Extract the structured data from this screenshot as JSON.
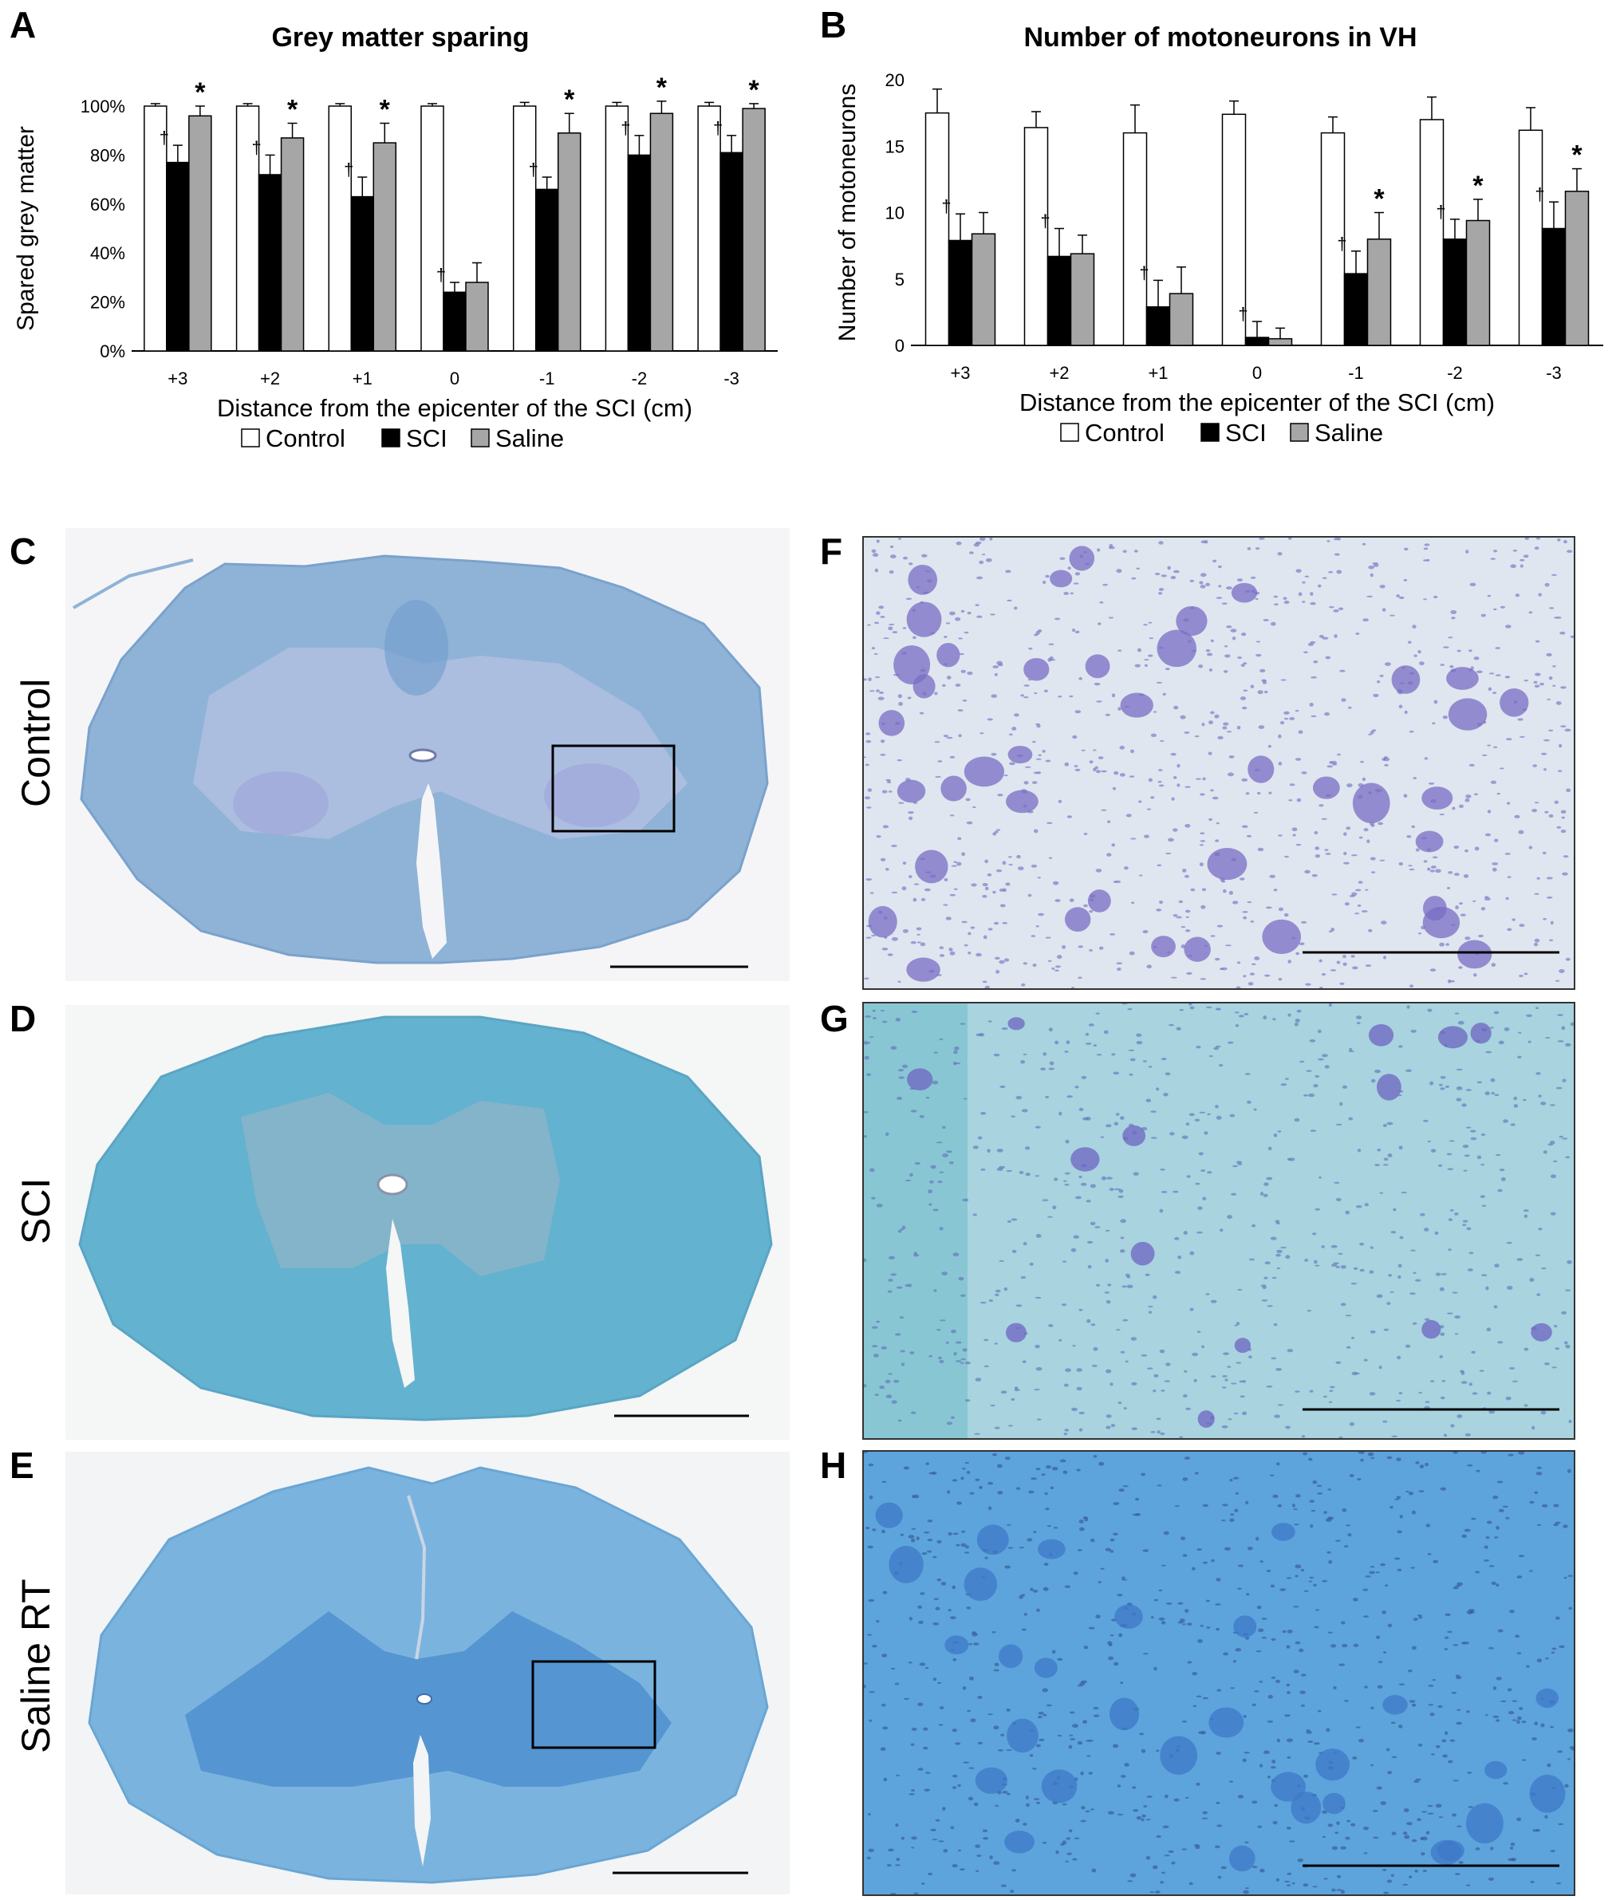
{
  "panel_letters": [
    "A",
    "B",
    "C",
    "D",
    "E",
    "F",
    "G",
    "H"
  ],
  "row_labels": [
    "Control",
    "SCI",
    "Saline RT"
  ],
  "colors": {
    "control_fill": "#ffffff",
    "sci_fill": "#000000",
    "saline_fill": "#a6a6a6",
    "tissue_light": "#8fb4d8",
    "tissue_dark": "#5f92c8",
    "neuron": "#7a6cc4"
  },
  "chart_data": [
    {
      "type": "bar",
      "title": "Grey matter sparing",
      "xlabel": "Distance from the epicenter of the SCI (cm)",
      "ylabel": "Spared grey matter",
      "ylim": [
        0,
        100
      ],
      "yticks": [
        0,
        20,
        40,
        60,
        80,
        100
      ],
      "ytick_labels": [
        "0%",
        "20%",
        "40%",
        "60%",
        "80%",
        "100%"
      ],
      "categories": [
        "+3",
        "+2",
        "+1",
        "0",
        "-1",
        "-2",
        "-3"
      ],
      "series": [
        {
          "name": "Control",
          "values": [
            100,
            100,
            100,
            100,
            100,
            100,
            100
          ],
          "errors": [
            1,
            1,
            1,
            1,
            1.5,
            1.5,
            1.5
          ],
          "marks": [
            "",
            "",
            "",
            "",
            "",
            "",
            ""
          ]
        },
        {
          "name": "SCI",
          "values": [
            77,
            72,
            63,
            24,
            66,
            80,
            81
          ],
          "errors": [
            7,
            8,
            8,
            4,
            5,
            8,
            7
          ],
          "marks": [
            "†",
            "†",
            "†",
            "†",
            "†",
            "†",
            "†"
          ]
        },
        {
          "name": "Saline",
          "values": [
            96,
            87,
            85,
            28,
            89,
            97,
            99
          ],
          "errors": [
            4,
            6,
            8,
            8,
            8,
            5,
            2
          ],
          "marks": [
            "*",
            "*",
            "*",
            "",
            "*",
            "*",
            "*"
          ]
        }
      ],
      "legend": [
        "Control",
        "SCI",
        "Saline"
      ],
      "legend_position": "bottom"
    },
    {
      "type": "bar",
      "title": "Number of motoneurons in VH",
      "xlabel": "Distance from the epicenter of the SCI (cm)",
      "ylabel": "Number of motoneurons",
      "ylim": [
        0,
        20
      ],
      "yticks": [
        0,
        5,
        10,
        15,
        20
      ],
      "ytick_labels": [
        "0",
        "5",
        "10",
        "15",
        "20"
      ],
      "categories": [
        "+3",
        "+2",
        "+1",
        "0",
        "-1",
        "-2",
        "-3"
      ],
      "series": [
        {
          "name": "Control",
          "values": [
            17.5,
            16.4,
            16.0,
            17.4,
            16.0,
            17.0,
            16.2
          ],
          "errors": [
            1.8,
            1.2,
            2.1,
            1.0,
            1.2,
            1.7,
            1.7
          ],
          "marks": [
            "",
            "",
            "",
            "",
            "",
            "",
            ""
          ]
        },
        {
          "name": "SCI",
          "values": [
            7.9,
            6.7,
            2.9,
            0.6,
            5.4,
            8.0,
            8.8
          ],
          "errors": [
            2.0,
            2.1,
            2.0,
            1.2,
            1.7,
            1.5,
            2.0
          ],
          "marks": [
            "†",
            "†",
            "†",
            "†",
            "†",
            "†",
            "†"
          ]
        },
        {
          "name": "Saline",
          "values": [
            8.4,
            6.9,
            3.9,
            0.5,
            8.0,
            9.4,
            11.6
          ],
          "errors": [
            1.6,
            1.4,
            2.0,
            0.8,
            2.0,
            1.6,
            1.7
          ],
          "marks": [
            "",
            "",
            "",
            "",
            "*",
            "*",
            "*"
          ]
        }
      ],
      "legend": [
        "Control",
        "SCI",
        "Saline"
      ],
      "legend_position": "bottom"
    }
  ]
}
